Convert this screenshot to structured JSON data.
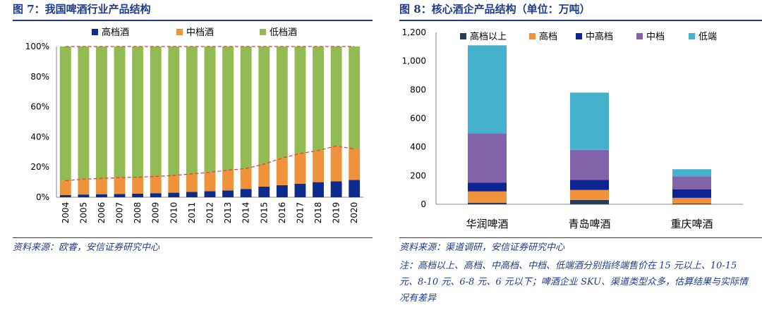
{
  "left": {
    "title": "图 7：我国啤酒行业产品结构",
    "source": "资料来源：欧睿，安信证券研究中心"
  },
  "right": {
    "title": "图 8：核心酒企产品结构（单位：万吨）",
    "source": "资料来源：渠道调研，安信证券研究中心",
    "note": "注：高档以上、高档、中高档、中档、低端酒分别指终端售价在 15 元以上、10-15 元、8-10 元、6-8 元、6 元以下；啤酒企业 SKU、渠道类型众多，估算结果与实际情况有差异"
  },
  "chart_data": [
    {
      "type": "bar",
      "stacked": true,
      "categories": [
        "2004",
        "2005",
        "2006",
        "2007",
        "2008",
        "2009",
        "2010",
        "2011",
        "2012",
        "2013",
        "2014",
        "2015",
        "2016",
        "2017",
        "2018",
        "2019",
        "2020"
      ],
      "series": [
        {
          "name": "高档酒",
          "color": "#0d2b8c",
          "values": [
            1.5,
            1.8,
            2.0,
            2.2,
            2.4,
            2.7,
            3.0,
            3.5,
            4.0,
            4.5,
            5.5,
            7.0,
            8.0,
            9.0,
            10.0,
            10.5,
            11.5
          ]
        },
        {
          "name": "中档酒",
          "color": "#f0923a",
          "values": [
            9.5,
            10.2,
            10.5,
            10.8,
            10.9,
            11.1,
            11.5,
            12.0,
            12.5,
            13.5,
            13.5,
            15.0,
            18.0,
            20.0,
            21.0,
            23.5,
            20.5
          ]
        },
        {
          "name": "低档酒",
          "color": "#93bb53",
          "values": [
            89.0,
            88.0,
            87.5,
            87.0,
            86.7,
            86.2,
            85.5,
            84.5,
            83.5,
            82.0,
            81.0,
            78.0,
            74.0,
            71.0,
            69.0,
            66.0,
            68.0
          ]
        }
      ],
      "yticks": [
        "0%",
        "20%",
        "40%",
        "60%",
        "80%",
        "100%"
      ],
      "ylim": [
        0,
        100
      ],
      "legend_position": "top",
      "reference_line": {
        "color": "#e23b3b",
        "style": "dashed"
      }
    },
    {
      "type": "bar",
      "stacked": true,
      "categories": [
        "华润啤酒",
        "青岛啤酒",
        "重庆啤酒"
      ],
      "series": [
        {
          "name": "高档以上",
          "color": "#263a5a",
          "values": [
            10,
            30,
            5
          ]
        },
        {
          "name": "高档",
          "color": "#f0923a",
          "values": [
            80,
            70,
            40
          ]
        },
        {
          "name": "中高档",
          "color": "#0d2494",
          "values": [
            60,
            70,
            60
          ]
        },
        {
          "name": "中档",
          "color": "#8262a8",
          "values": [
            345,
            210,
            90
          ]
        },
        {
          "name": "低端",
          "color": "#46b1cc",
          "values": [
            615,
            400,
            50
          ]
        }
      ],
      "yticks": [
        "0",
        "200",
        "400",
        "600",
        "800",
        "1,000",
        "1,200"
      ],
      "ylim": [
        0,
        1200
      ],
      "legend_position": "top"
    }
  ]
}
